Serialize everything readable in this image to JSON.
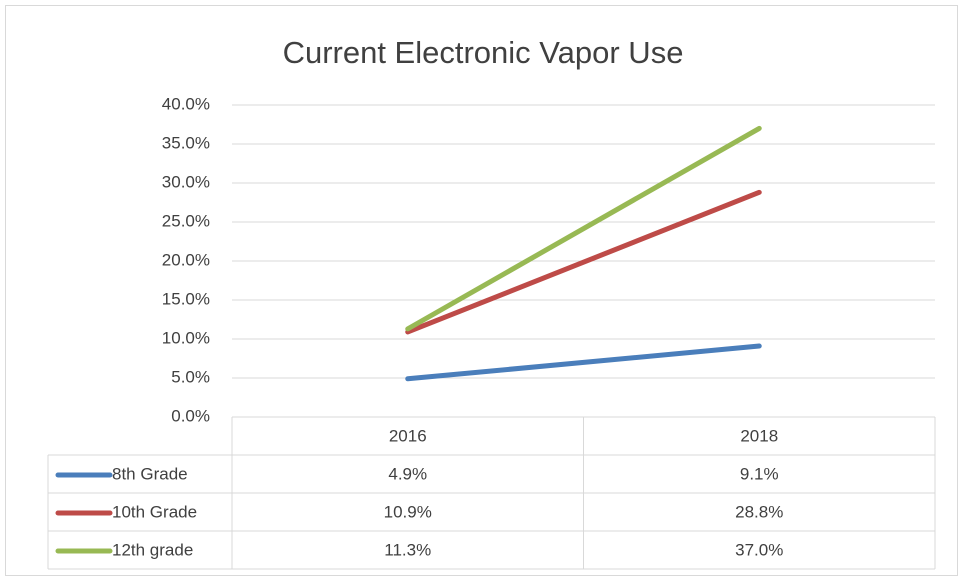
{
  "chart_data": {
    "type": "line",
    "title": "Current Electronic Vapor Use",
    "categories": [
      "2016",
      "2018"
    ],
    "series": [
      {
        "name": "8th Grade",
        "color": "#4a7ebb",
        "values": [
          4.9,
          9.1
        ],
        "value_labels": [
          "4.9%",
          "9.1%"
        ]
      },
      {
        "name": "10th Grade",
        "color": "#be4b48",
        "values": [
          10.9,
          28.8
        ],
        "value_labels": [
          "10.9%",
          "28.8%"
        ]
      },
      {
        "name": "12th grade",
        "color": "#98b954",
        "values": [
          11.3,
          37.0
        ],
        "value_labels": [
          "11.3%",
          "37.0%"
        ]
      }
    ],
    "ylim": [
      0,
      40
    ],
    "yticks": [
      {
        "value": 0,
        "label": "0.0%"
      },
      {
        "value": 5,
        "label": "5.0%"
      },
      {
        "value": 10,
        "label": "10.0%"
      },
      {
        "value": 15,
        "label": "15.0%"
      },
      {
        "value": 20,
        "label": "20.0%"
      },
      {
        "value": 25,
        "label": "25.0%"
      },
      {
        "value": 30,
        "label": "30.0%"
      },
      {
        "value": 35,
        "label": "35.0%"
      },
      {
        "value": 40,
        "label": "40.0%"
      }
    ],
    "grid": true
  }
}
